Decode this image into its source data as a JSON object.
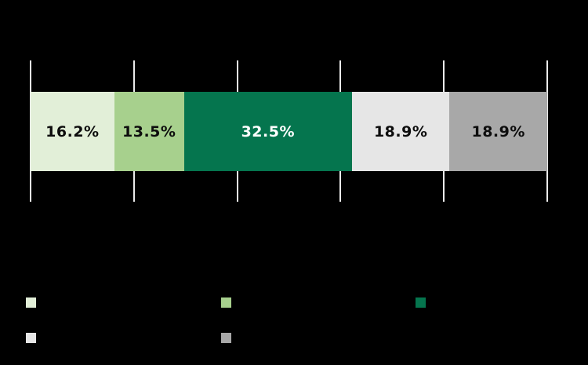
{
  "chart_data": {
    "type": "bar",
    "variant": "horizontal-stacked",
    "title": "",
    "xlabel": "",
    "ylabel": "",
    "xlim": [
      0,
      100
    ],
    "gridline_step_percent": 20,
    "gridlines_percent": [
      0,
      20,
      40,
      60,
      80,
      100
    ],
    "grid_on": true,
    "gridline_color": "#ebebeb",
    "background_color": "#000000",
    "tick_labels_visible": false,
    "segments": [
      {
        "value": 16.2,
        "display": "16.2%",
        "color": "#e2efd8",
        "text_color": "#0d0d0d"
      },
      {
        "value": 13.5,
        "display": "13.5%",
        "color": "#a7d08d",
        "text_color": "#0d0d0d"
      },
      {
        "value": 32.5,
        "display": "32.5%",
        "color": "#05754e",
        "text_color": "#ffffff"
      },
      {
        "value": 18.9,
        "display": "18.9%",
        "color": "#e6e6e6",
        "text_color": "#0d0d0d"
      },
      {
        "value": 18.9,
        "display": "18.9%",
        "color": "#a8a8a8",
        "text_color": "#0d0d0d"
      }
    ],
    "legend": {
      "position": "bottom",
      "labels_visible": false,
      "swatches": [
        {
          "color": "#e2efd8",
          "row": 0,
          "col": 0
        },
        {
          "color": "#a7d08d",
          "row": 0,
          "col": 1
        },
        {
          "color": "#05754e",
          "row": 0,
          "col": 2
        },
        {
          "color": "#e6e6e6",
          "row": 1,
          "col": 0
        },
        {
          "color": "#a8a8a8",
          "row": 1,
          "col": 1
        }
      ]
    }
  }
}
